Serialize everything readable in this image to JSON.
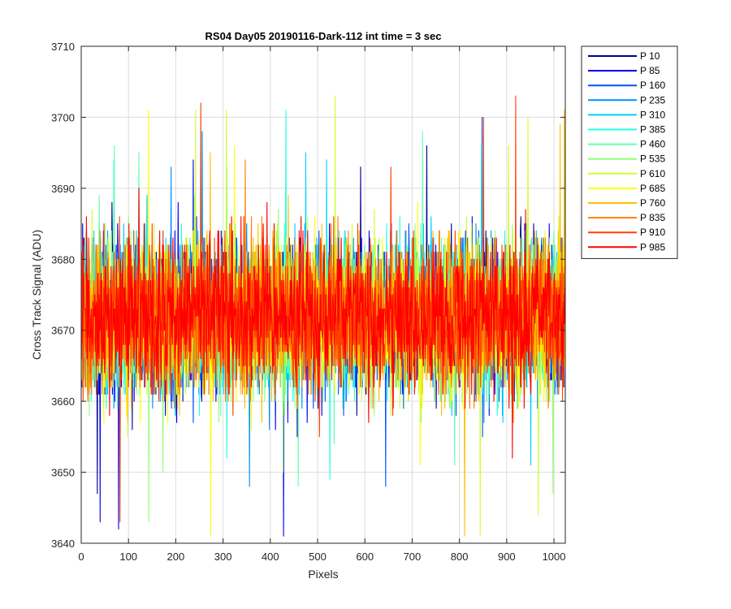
{
  "chart_data": {
    "type": "line",
    "title": "RS04 Day05 20190116-Dark-112 int time = 3 sec",
    "xlabel": "Pixels",
    "ylabel": "Cross Track Signal (ADU)",
    "xlim": [
      0,
      1024
    ],
    "ylim": [
      3640,
      3710
    ],
    "xticks": [
      0,
      100,
      200,
      300,
      400,
      500,
      600,
      700,
      800,
      900,
      1000
    ],
    "yticks": [
      3640,
      3650,
      3660,
      3670,
      3680,
      3690,
      3700,
      3710
    ],
    "grid": true,
    "legend_position": "outside-right",
    "noise_mean": 3672,
    "noise_typical_range": [
      3658,
      3688
    ],
    "noise_extremes": [
      3641,
      3705
    ],
    "series": [
      {
        "name": "P 10",
        "color": "#00008F"
      },
      {
        "name": "P 85",
        "color": "#0000EF"
      },
      {
        "name": "P 160",
        "color": "#0050FF"
      },
      {
        "name": "P 235",
        "color": "#0090FF"
      },
      {
        "name": "P 310",
        "color": "#00CFFF"
      },
      {
        "name": "P 385",
        "color": "#20FFDF"
      },
      {
        "name": "P 460",
        "color": "#60FFAF"
      },
      {
        "name": "P 535",
        "color": "#90FF70"
      },
      {
        "name": "P 610",
        "color": "#CFFF30"
      },
      {
        "name": "P 685",
        "color": "#FFFF00"
      },
      {
        "name": "P 760",
        "color": "#FFC000"
      },
      {
        "name": "P 835",
        "color": "#FF8000"
      },
      {
        "name": "P 910",
        "color": "#FF4000"
      },
      {
        "name": "P 985",
        "color": "#FF0000"
      }
    ]
  }
}
